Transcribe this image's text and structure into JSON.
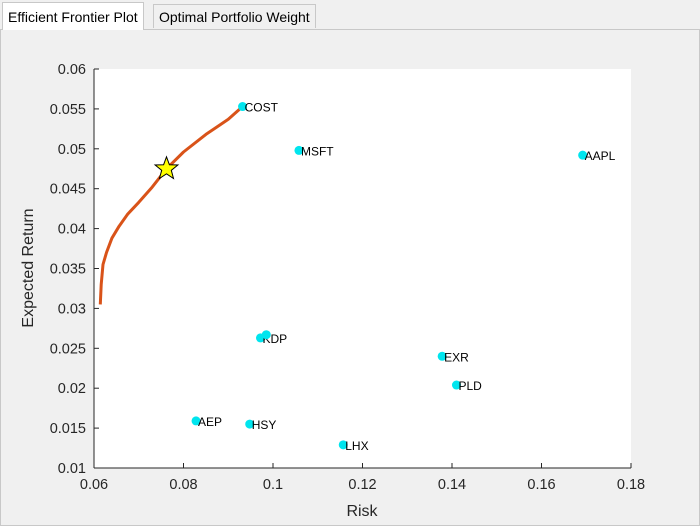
{
  "tabs": [
    {
      "label": "Efficient Frontier Plot",
      "active": true
    },
    {
      "label": "Optimal Portfolio Weight",
      "active": false
    }
  ],
  "chart_data": {
    "type": "scatter",
    "xlabel": "Risk",
    "ylabel": "Expected Return",
    "xlim": [
      0.06,
      0.18
    ],
    "ylim": [
      0.01,
      0.06
    ],
    "xticks": [
      "0.06",
      "0.08",
      "0.1",
      "0.12",
      "0.14",
      "0.16",
      "0.18"
    ],
    "yticks": [
      "0.01",
      "0.015",
      "0.02",
      "0.025",
      "0.03",
      "0.035",
      "0.04",
      "0.045",
      "0.05",
      "0.055",
      "0.06"
    ],
    "grid": false,
    "colors": {
      "points": "#00e5ee",
      "frontier": "#d95319",
      "star_fill": "#ffff00",
      "star_stroke": "#000000"
    },
    "assets": [
      {
        "name": "COST",
        "x": 0.0932,
        "y": 0.0553
      },
      {
        "name": "MSFT",
        "x": 0.1058,
        "y": 0.0498
      },
      {
        "name": "AAPL",
        "x": 0.1692,
        "y": 0.0492
      },
      {
        "name": "KDP",
        "x": 0.0972,
        "y": 0.0263
      },
      {
        "name": "",
        "x": 0.0985,
        "y": 0.0267
      },
      {
        "name": "EXR",
        "x": 0.1378,
        "y": 0.024
      },
      {
        "name": "PLD",
        "x": 0.141,
        "y": 0.0204
      },
      {
        "name": "AEP",
        "x": 0.0828,
        "y": 0.0159
      },
      {
        "name": "HSY",
        "x": 0.0948,
        "y": 0.0155
      },
      {
        "name": "LHX",
        "x": 0.1157,
        "y": 0.0129
      }
    ],
    "frontier": {
      "x": [
        0.0614,
        0.0616,
        0.062,
        0.0628,
        0.064,
        0.0656,
        0.0675,
        0.07,
        0.073,
        0.0762,
        0.08,
        0.085,
        0.09,
        0.0932
      ],
      "y": [
        0.0305,
        0.033,
        0.0355,
        0.037,
        0.0388,
        0.0403,
        0.0418,
        0.0433,
        0.0452,
        0.0475,
        0.0496,
        0.0518,
        0.0537,
        0.0553
      ]
    },
    "optimal_portfolio": {
      "x": 0.0762,
      "y": 0.0475
    }
  }
}
